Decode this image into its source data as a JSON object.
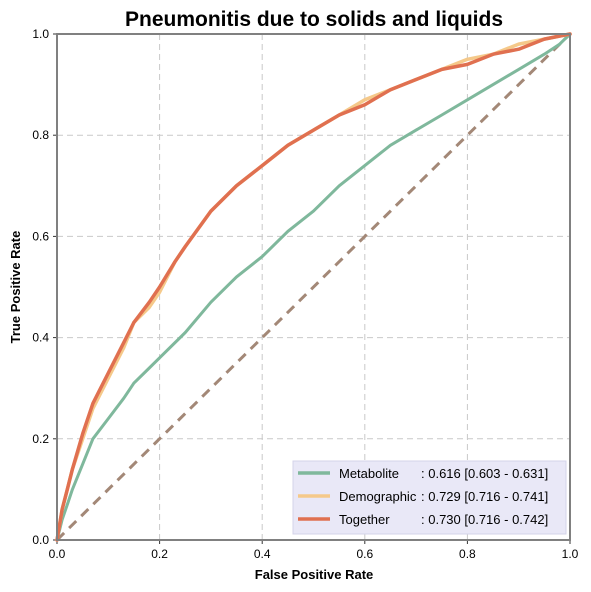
{
  "chart_data": {
    "type": "line",
    "title": "Pneumonitis due to solids and liquids",
    "xlabel": "False Positive Rate",
    "ylabel": "True Positive Rate",
    "xlim": [
      0,
      1
    ],
    "ylim": [
      0,
      1
    ],
    "xticks": [
      "0.0",
      "0.2",
      "0.4",
      "0.6",
      "0.8",
      "1.0"
    ],
    "yticks": [
      "0.0",
      "0.2",
      "0.4",
      "0.6",
      "0.8",
      "1.0"
    ],
    "grid": true,
    "legend_position": "lower-right",
    "reference_line": {
      "x": [
        0,
        1
      ],
      "y": [
        0,
        1
      ],
      "color": "#a38877",
      "style": "dashed"
    },
    "series": [
      {
        "name": "Metabolite",
        "stats": ": 0.616 [0.603 - 0.631]",
        "color": "#7fb89c",
        "x": [
          0,
          0.005,
          0.01,
          0.02,
          0.03,
          0.05,
          0.07,
          0.1,
          0.13,
          0.15,
          0.18,
          0.2,
          0.25,
          0.3,
          0.35,
          0.4,
          0.45,
          0.5,
          0.55,
          0.6,
          0.65,
          0.7,
          0.75,
          0.8,
          0.85,
          0.9,
          0.95,
          0.98,
          1.0
        ],
        "y": [
          0,
          0.02,
          0.04,
          0.07,
          0.1,
          0.15,
          0.2,
          0.24,
          0.28,
          0.31,
          0.34,
          0.36,
          0.41,
          0.47,
          0.52,
          0.56,
          0.61,
          0.65,
          0.7,
          0.74,
          0.78,
          0.81,
          0.84,
          0.87,
          0.9,
          0.93,
          0.96,
          0.98,
          1.0
        ]
      },
      {
        "name": "Demographic",
        "stats": ": 0.729 [0.716 - 0.741]",
        "color": "#f5c98a",
        "x": [
          0,
          0.005,
          0.01,
          0.02,
          0.03,
          0.05,
          0.07,
          0.1,
          0.13,
          0.15,
          0.18,
          0.2,
          0.23,
          0.25,
          0.3,
          0.35,
          0.4,
          0.45,
          0.5,
          0.55,
          0.6,
          0.65,
          0.7,
          0.75,
          0.8,
          0.85,
          0.9,
          0.95,
          1.0
        ],
        "y": [
          0,
          0.03,
          0.06,
          0.1,
          0.14,
          0.2,
          0.26,
          0.32,
          0.38,
          0.43,
          0.46,
          0.49,
          0.55,
          0.58,
          0.65,
          0.7,
          0.74,
          0.78,
          0.81,
          0.84,
          0.87,
          0.89,
          0.91,
          0.93,
          0.95,
          0.96,
          0.98,
          0.99,
          1.0
        ]
      },
      {
        "name": "Together",
        "stats": ": 0.730 [0.716 - 0.742]",
        "color": "#e07050",
        "x": [
          0,
          0.005,
          0.01,
          0.02,
          0.03,
          0.05,
          0.07,
          0.1,
          0.13,
          0.15,
          0.18,
          0.2,
          0.23,
          0.25,
          0.3,
          0.35,
          0.4,
          0.45,
          0.5,
          0.55,
          0.6,
          0.65,
          0.7,
          0.75,
          0.8,
          0.85,
          0.9,
          0.95,
          1.0
        ],
        "y": [
          0,
          0.03,
          0.06,
          0.1,
          0.14,
          0.21,
          0.27,
          0.33,
          0.39,
          0.43,
          0.47,
          0.5,
          0.55,
          0.58,
          0.65,
          0.7,
          0.74,
          0.78,
          0.81,
          0.84,
          0.86,
          0.89,
          0.91,
          0.93,
          0.94,
          0.96,
          0.97,
          0.99,
          1.0
        ]
      }
    ]
  },
  "colors": {
    "legend_background": "#e9e8f7",
    "grid": "#c9c9c9",
    "frame": "#808080"
  }
}
